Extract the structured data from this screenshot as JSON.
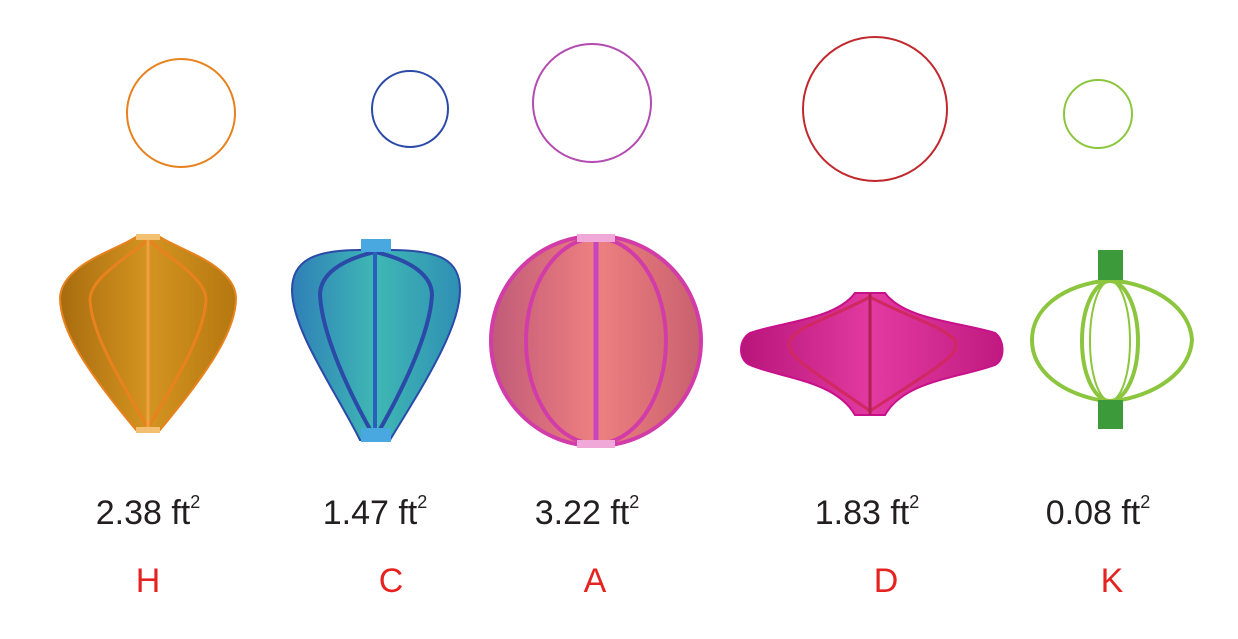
{
  "shapes": [
    {
      "letter": "H",
      "area": "2.38",
      "unit": "ft",
      "exponent": "2",
      "color": "#e8821e"
    },
    {
      "letter": "C",
      "area": "1.47",
      "unit": "ft",
      "exponent": "2",
      "color": "#2b4aa8"
    },
    {
      "letter": "A",
      "area": "3.22",
      "unit": "ft",
      "exponent": "2",
      "color": "#b44bb0"
    },
    {
      "letter": "D",
      "area": "1.83",
      "unit": "ft",
      "exponent": "2",
      "color": "#c0282d"
    },
    {
      "letter": "K",
      "area": "0.08",
      "unit": "ft",
      "exponent": "2",
      "color": "#8cc63f"
    }
  ]
}
